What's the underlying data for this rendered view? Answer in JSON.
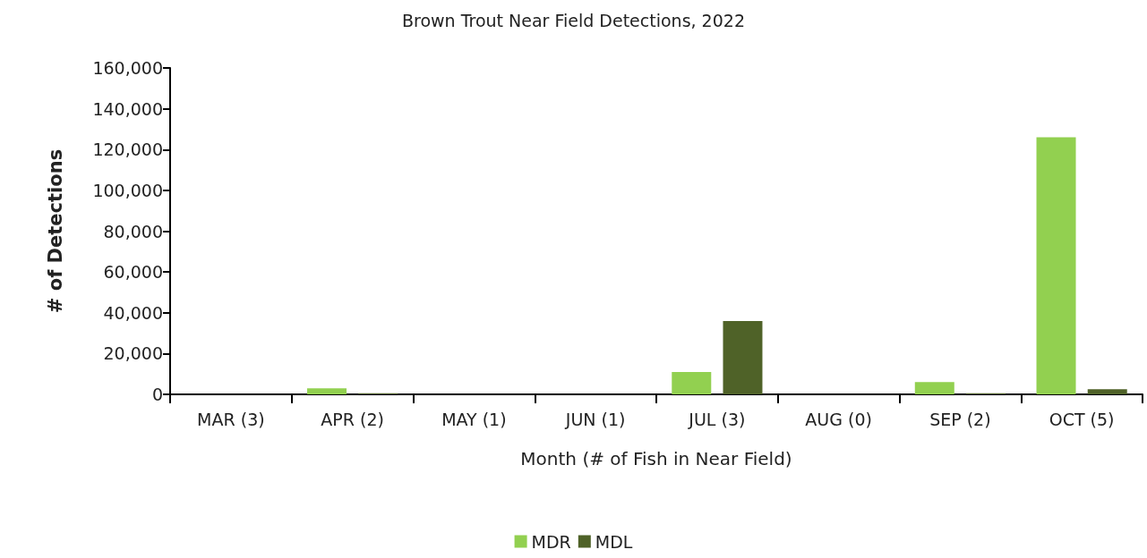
{
  "chart_data": {
    "type": "bar",
    "title": "Brown Trout Near Field Detections, 2022",
    "xlabel": "Month (# of Fish in Near Field)",
    "ylabel": "# of Detections",
    "categories": [
      "MAR (3)",
      "APR (2)",
      "MAY (1)",
      "JUN (1)",
      "JUL (3)",
      "AUG (0)",
      "SEP (2)",
      "OCT (5)"
    ],
    "series": [
      {
        "name": "MDR",
        "color": "#92d050",
        "values": [
          0,
          3000,
          0,
          0,
          11000,
          0,
          6000,
          126000
        ]
      },
      {
        "name": "MDL",
        "color": "#4f6228",
        "values": [
          0,
          500,
          0,
          0,
          36000,
          0,
          500,
          2500
        ]
      }
    ],
    "ylim": [
      0,
      160000
    ],
    "yticks": [
      0,
      {
        "value": 20000,
        "label": "20,000"
      },
      {
        "value": 40000,
        "label": "40,000"
      },
      {
        "value": 60000,
        "label": "60,000"
      },
      {
        "value": 80000,
        "label": "80,000"
      },
      {
        "value": 100000,
        "label": "100,000"
      },
      {
        "value": 120000,
        "label": "120,000"
      },
      {
        "value": 140000,
        "label": "140,000"
      },
      {
        "value": 160000,
        "label": "160,000"
      }
    ],
    "grid": false,
    "legend": "bottom"
  }
}
